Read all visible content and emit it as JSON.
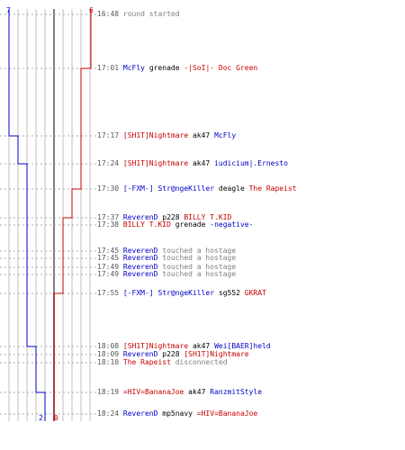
{
  "colors": {
    "blue_team": "#0000c8",
    "red_team": "#c80000",
    "time": "#555555",
    "event": "#808080",
    "grid": "#c0c0c0",
    "center": "#808080"
  },
  "scores": {
    "blue_start": "7",
    "red_start": "6",
    "blue_end": "2",
    "red_end": "0"
  },
  "events": [
    {
      "time": "16:48",
      "parts": [
        {
          "text": "round started",
          "color": "event"
        }
      ]
    },
    {
      "time": "17:01",
      "parts": [
        {
          "text": "McFly",
          "color": "blue"
        },
        {
          "text": " grenade ",
          "color": "black"
        },
        {
          "text": "-|SoI|- Doc Green",
          "color": "red"
        }
      ]
    },
    {
      "time": "17:17",
      "parts": [
        {
          "text": "[SH1T]Nightmare",
          "color": "red"
        },
        {
          "text": " ak47 ",
          "color": "black"
        },
        {
          "text": "McFly",
          "color": "blue"
        }
      ]
    },
    {
      "time": "17:24",
      "parts": [
        {
          "text": "[SH1T]Nightmare",
          "color": "red"
        },
        {
          "text": " ak47 ",
          "color": "black"
        },
        {
          "text": "iudicium|.Ernesto",
          "color": "blue"
        }
      ]
    },
    {
      "time": "17:30",
      "parts": [
        {
          "text": "[-FXM-] Str@ngeKiller",
          "color": "blue"
        },
        {
          "text": " deagle ",
          "color": "black"
        },
        {
          "text": "The Rapeist",
          "color": "red"
        }
      ]
    },
    {
      "time": "17:37",
      "parts": [
        {
          "text": "ReverenD",
          "color": "blue"
        },
        {
          "text": " p228 ",
          "color": "black"
        },
        {
          "text": "BILLY T.KID",
          "color": "red"
        }
      ]
    },
    {
      "time": "17:38",
      "parts": [
        {
          "text": "BILLY T.KID",
          "color": "red"
        },
        {
          "text": " grenade ",
          "color": "black"
        },
        {
          "text": "-negative-",
          "color": "blue"
        }
      ]
    },
    {
      "time": "17:45",
      "parts": [
        {
          "text": "ReverenD",
          "color": "blue"
        },
        {
          "text": " touched a hostage",
          "color": "event"
        }
      ]
    },
    {
      "time": "17:45",
      "parts": [
        {
          "text": "ReverenD",
          "color": "blue"
        },
        {
          "text": " touched a hostage",
          "color": "event"
        }
      ]
    },
    {
      "time": "17:49",
      "parts": [
        {
          "text": "ReverenD",
          "color": "blue"
        },
        {
          "text": " touched a hostage",
          "color": "event"
        }
      ]
    },
    {
      "time": "17:49",
      "parts": [
        {
          "text": "ReverenD",
          "color": "blue"
        },
        {
          "text": " touched a hostage",
          "color": "event"
        }
      ]
    },
    {
      "time": "17:55",
      "parts": [
        {
          "text": "[-FXM-] Str@ngeKiller",
          "color": "blue"
        },
        {
          "text": " sg552 ",
          "color": "black"
        },
        {
          "text": "GKRAT",
          "color": "red"
        }
      ]
    },
    {
      "time": "18:08",
      "parts": [
        {
          "text": "[SH1T]Nightmare",
          "color": "red"
        },
        {
          "text": " ak47 ",
          "color": "black"
        },
        {
          "text": "Wei[BAER]held",
          "color": "blue"
        }
      ]
    },
    {
      "time": "18:09",
      "parts": [
        {
          "text": "ReverenD",
          "color": "blue"
        },
        {
          "text": " p228 ",
          "color": "black"
        },
        {
          "text": "[SH1T]Nightmare",
          "color": "red"
        }
      ]
    },
    {
      "time": "18:10",
      "parts": [
        {
          "text": "The Rapeist",
          "color": "red"
        },
        {
          "text": " disconnected",
          "color": "event"
        }
      ]
    },
    {
      "time": "18:19",
      "parts": [
        {
          "text": "=HIV=BananaJoe",
          "color": "red"
        },
        {
          "text": " ak47 ",
          "color": "black"
        },
        {
          "text": "RanzmitStyle",
          "color": "blue"
        }
      ]
    },
    {
      "time": "18:24",
      "parts": [
        {
          "text": "ReverenD",
          "color": "blue"
        },
        {
          "text": " mp5navy ",
          "color": "black"
        },
        {
          "text": "=HIV=BananaJoe",
          "color": "red"
        }
      ]
    }
  ]
}
